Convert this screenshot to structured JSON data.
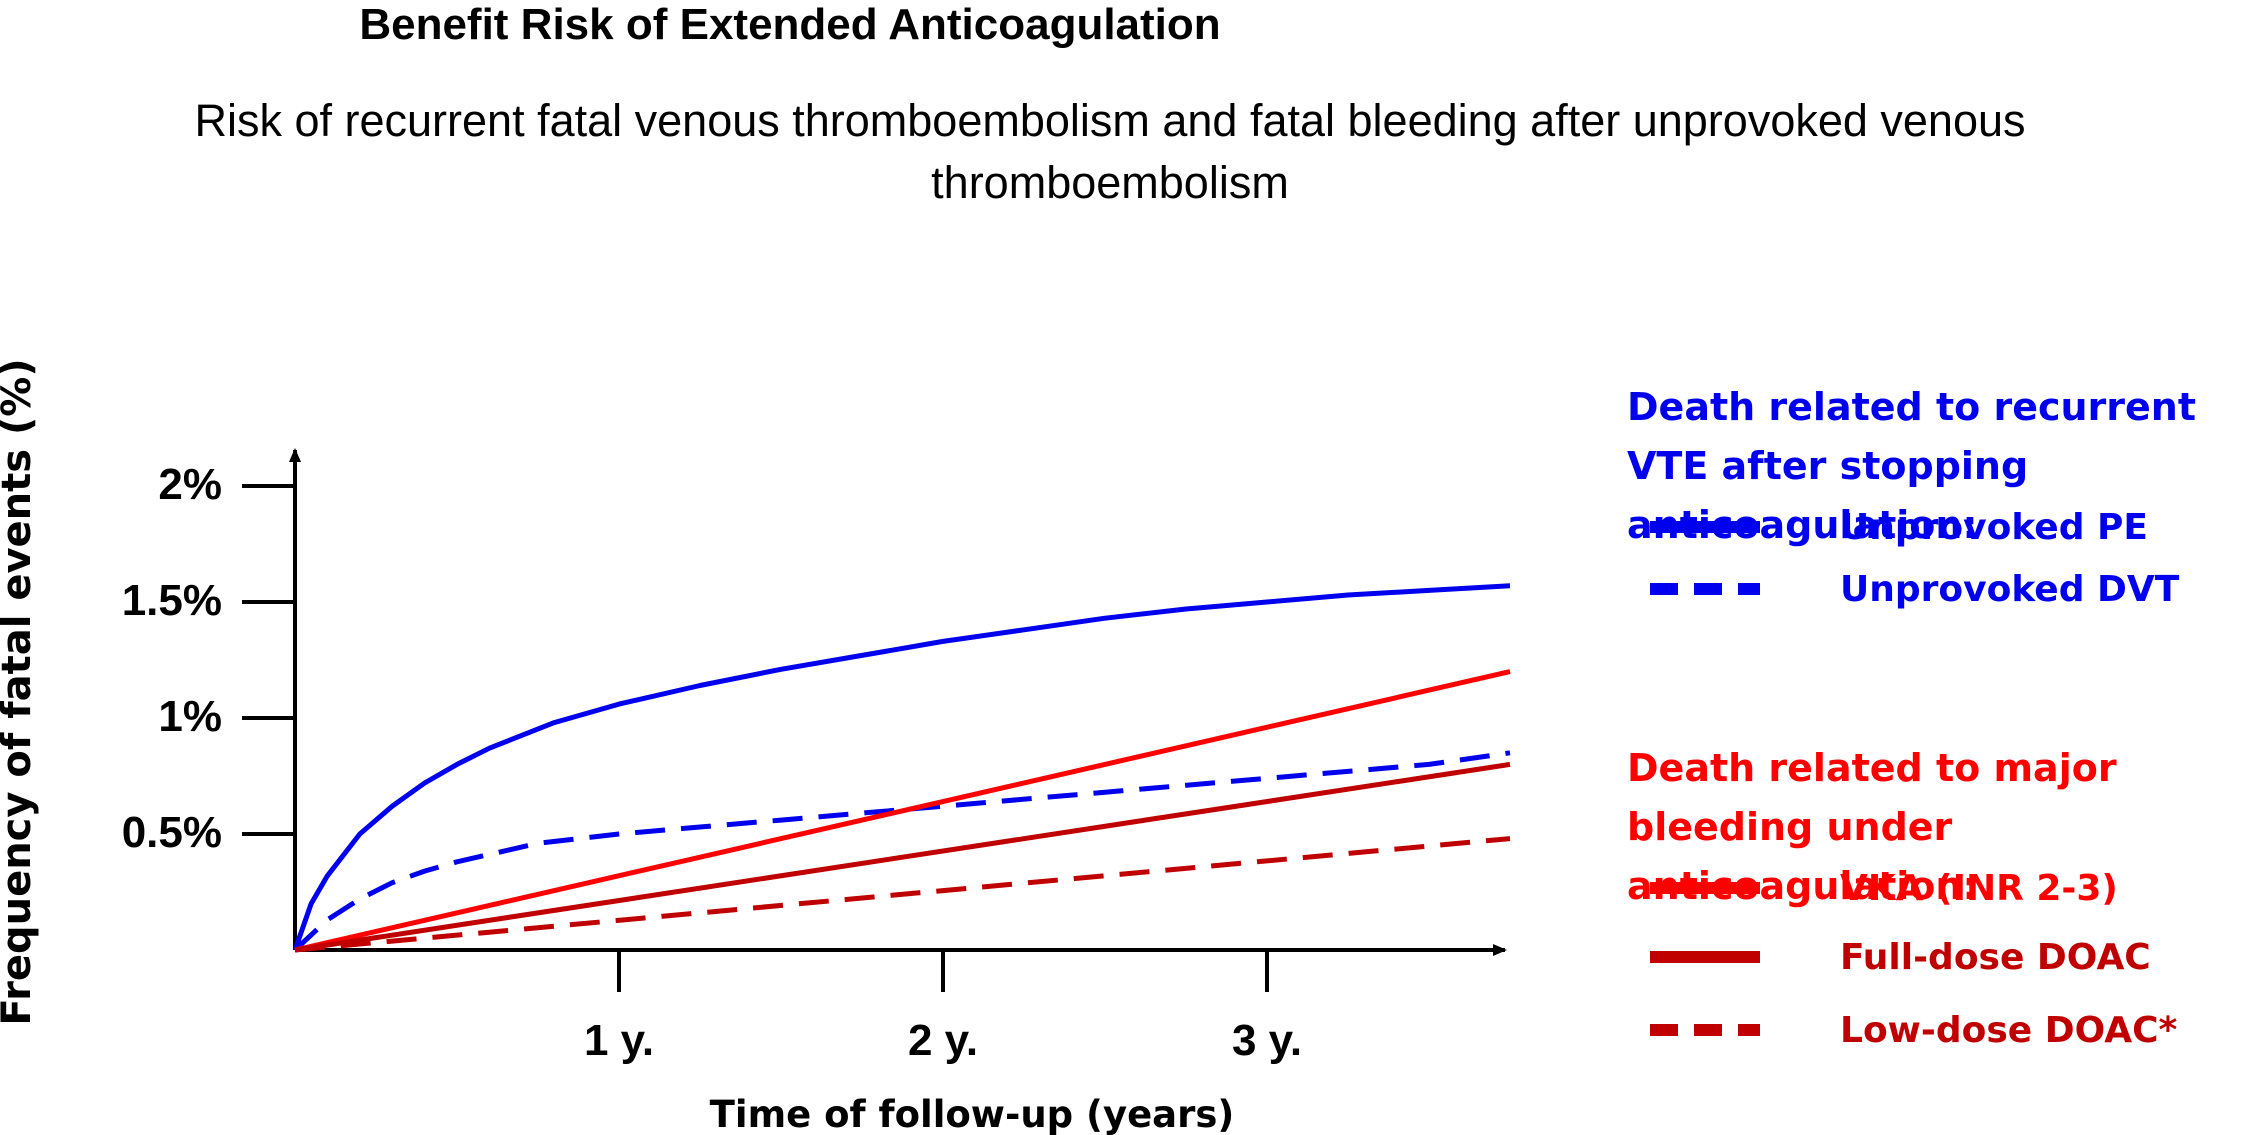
{
  "title": "Benefit Risk of Extended Anticoagulation",
  "subtitle": "Risk of recurrent fatal venous thromboembolism and fatal bleeding after unprovoked venous thromboembolism",
  "legend": {
    "vte_heading": "Death related to recurrent VTE after stopping anticoagulation:",
    "bleed_heading": "Death related to major bleeding under anticoagulation:",
    "items": [
      {
        "label": "Unprovoked PE",
        "color": "#0000ee",
        "style": "solid"
      },
      {
        "label": "Unprovoked DVT",
        "color": "#0000ee",
        "style": "dashed"
      },
      {
        "label": "VKA (INR 2-3)",
        "color": "#ff0000",
        "style": "solid"
      },
      {
        "label": "Full-dose DOAC",
        "color": "#c00000",
        "style": "solid"
      },
      {
        "label": "Low-dose DOAC*",
        "color": "#c00000",
        "style": "dashed"
      }
    ]
  },
  "chart_data": {
    "type": "line",
    "title": "Benefit Risk of Extended Anticoagulation",
    "subtitle": "Risk of recurrent fatal venous thromboembolism and fatal bleeding after unprovoked venous thromboembolism",
    "xlabel": "Time of follow-up (years)",
    "ylabel": "Frequency of fatal events (%)",
    "x_ticks": [
      {
        "value": 1,
        "label": "1 y."
      },
      {
        "value": 2,
        "label": "2 y."
      },
      {
        "value": 3,
        "label": "3 y."
      }
    ],
    "y_ticks": [
      {
        "value": 0.5,
        "label": "0.5%"
      },
      {
        "value": 1.0,
        "label": "1%"
      },
      {
        "value": 1.5,
        "label": "1.5%"
      },
      {
        "value": 2.0,
        "label": "2%"
      }
    ],
    "xlim": [
      0,
      3.75
    ],
    "ylim": [
      0,
      2.2
    ],
    "grid": false,
    "legend_position": "right",
    "series": [
      {
        "name": "Unprovoked PE",
        "color": "#0000ee",
        "dashed": false,
        "x": [
          0,
          0.05,
          0.1,
          0.2,
          0.3,
          0.4,
          0.5,
          0.6,
          0.8,
          1.0,
          1.25,
          1.5,
          1.75,
          2.0,
          2.25,
          2.5,
          2.75,
          3.0,
          3.25,
          3.5,
          3.75
        ],
        "y": [
          0,
          0.2,
          0.32,
          0.5,
          0.62,
          0.72,
          0.8,
          0.87,
          0.98,
          1.06,
          1.14,
          1.21,
          1.27,
          1.33,
          1.38,
          1.43,
          1.47,
          1.5,
          1.53,
          1.55,
          1.57
        ]
      },
      {
        "name": "Unprovoked DVT",
        "color": "#0000ee",
        "dashed": true,
        "x": [
          0,
          0.1,
          0.2,
          0.3,
          0.4,
          0.5,
          0.75,
          1.0,
          1.25,
          1.5,
          1.75,
          2.0,
          2.5,
          3.0,
          3.5,
          3.75
        ],
        "y": [
          0,
          0.13,
          0.22,
          0.29,
          0.34,
          0.38,
          0.46,
          0.5,
          0.53,
          0.56,
          0.59,
          0.62,
          0.68,
          0.74,
          0.8,
          0.85
        ]
      },
      {
        "name": "VKA (INR 2-3)",
        "color": "#ff0000",
        "dashed": false,
        "x": [
          0,
          3.75
        ],
        "y": [
          0,
          1.2
        ]
      },
      {
        "name": "Full-dose DOAC",
        "color": "#c00000",
        "dashed": false,
        "x": [
          0,
          3.75
        ],
        "y": [
          0,
          0.8
        ]
      },
      {
        "name": "Low-dose DOAC*",
        "color": "#c00000",
        "dashed": true,
        "x": [
          0,
          3.75
        ],
        "y": [
          0,
          0.48
        ]
      }
    ]
  }
}
